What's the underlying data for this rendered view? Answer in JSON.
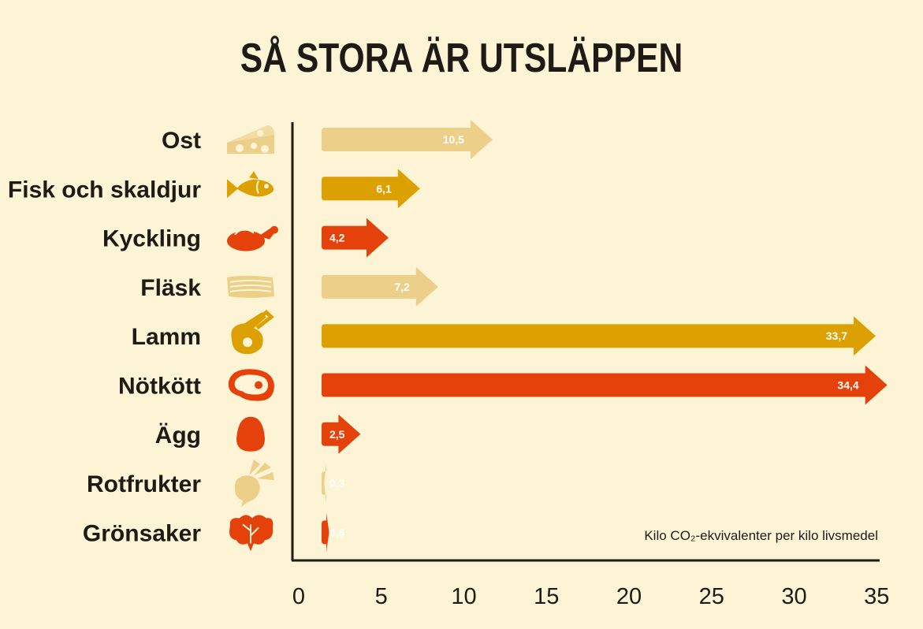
{
  "title": "SÅ STORA ÄR UTSLÄPPEN",
  "unit_note": "Kilo CO₂-ekvivalenter per kilo livsmedel",
  "colors": {
    "background": "#fdf4d6",
    "light": "#eccf88",
    "mustard": "#dca000",
    "red": "#e5420b",
    "text": "#1e1a16"
  },
  "chart_data": {
    "type": "bar",
    "orientation": "horizontal",
    "title": "SÅ STORA ÄR UTSLÄPPEN",
    "xlabel": "Kilo CO₂-ekvivalenter per kilo livsmedel",
    "ylabel": "",
    "xlim": [
      0,
      35
    ],
    "xticks": [
      "0",
      "5",
      "10",
      "15",
      "20",
      "25",
      "30",
      "35"
    ],
    "grid": false,
    "categories": [
      "Ost",
      "Fisk och skaldjur",
      "Kyckling",
      "Fläsk",
      "Lamm",
      "Nötkött",
      "Ägg",
      "Rotfrukter",
      "Grönsaker"
    ],
    "values": [
      10.5,
      6.1,
      4.2,
      7.2,
      33.7,
      34.4,
      2.5,
      0.3,
      0.6
    ],
    "value_labels": [
      "10,5",
      "6,1",
      "4,2",
      "7,2",
      "33,7",
      "34,4",
      "2,5",
      "0,3",
      "0,6"
    ],
    "bar_colors": [
      "#eccf88",
      "#dca000",
      "#e5420b",
      "#eccf88",
      "#dca000",
      "#e5420b",
      "#e5420b",
      "#eccf88",
      "#e5420b"
    ],
    "icons": [
      "cheese-icon",
      "fish-icon",
      "chicken-icon",
      "bacon-icon",
      "lamb-chop-icon",
      "steak-icon",
      "egg-icon",
      "beetroot-icon",
      "lettuce-icon"
    ]
  }
}
